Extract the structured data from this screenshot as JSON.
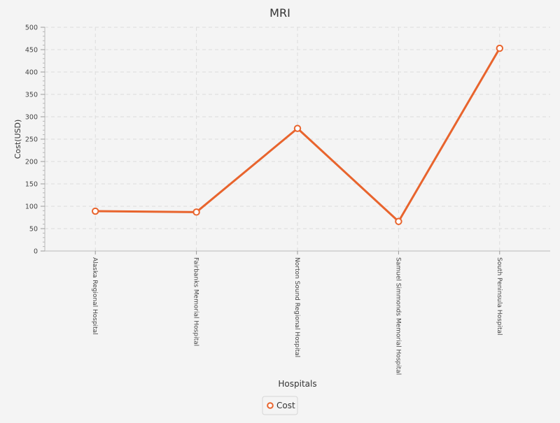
{
  "chart_data": {
    "type": "line",
    "title": "MRI",
    "xlabel": "Hospitals",
    "ylabel": "Cost(USD)",
    "categories": [
      "Alaska Regional Hospital",
      "Fairbanks Memorial Hospital",
      "Norton Sound Regional Hospital",
      "Samuel Simmonds Memorial Hospital",
      "South Peninsula Hospital"
    ],
    "series": [
      {
        "name": "Cost",
        "values": [
          89,
          87,
          274,
          66,
          453
        ],
        "color": "#e8642d"
      }
    ],
    "ylim": [
      0,
      500
    ],
    "y_ticks": [
      0,
      50,
      100,
      150,
      200,
      250,
      300,
      350,
      400,
      450,
      500
    ],
    "grid": true,
    "legend": "bottom-center"
  }
}
